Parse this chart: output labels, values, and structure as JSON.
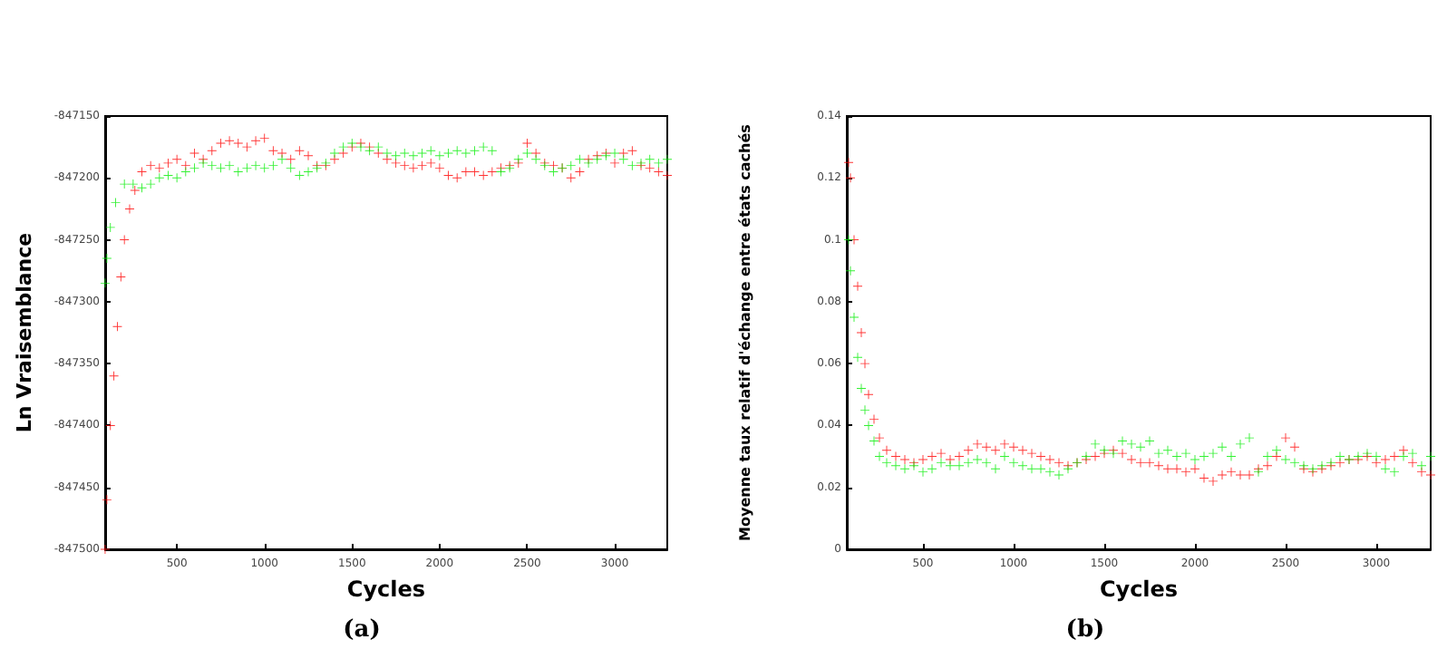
{
  "chart_data": [
    {
      "type": "scatter",
      "xlabel": "Cycles",
      "ylabel": "Ln Vraisemblance",
      "annotations": [
        "(a)"
      ],
      "marker": "cross",
      "xlim": [
        90,
        3300
      ],
      "xticks": [
        500,
        1000,
        1500,
        2000,
        2500,
        3000
      ],
      "ylim": [
        -847500,
        -847150
      ],
      "yticks": [
        -847500,
        -847450,
        -847400,
        -847350,
        -847300,
        -847250,
        -847200,
        -847150
      ],
      "series": [
        {
          "color": "#ff0000",
          "x": [
            90,
            100,
            120,
            140,
            160,
            180,
            200,
            230,
            260,
            300,
            350,
            400,
            450,
            500,
            550,
            600,
            650,
            700,
            750,
            800,
            850,
            900,
            950,
            1000,
            1050,
            1100,
            1150,
            1200,
            1250,
            1300,
            1350,
            1400,
            1450,
            1500,
            1550,
            1600,
            1650,
            1700,
            1750,
            1800,
            1850,
            1900,
            1950,
            2000,
            2050,
            2100,
            2150,
            2200,
            2250,
            2300,
            2350,
            2400,
            2450,
            2500,
            2550,
            2600,
            2650,
            2700,
            2750,
            2800,
            2850,
            2900,
            2950,
            3000,
            3050,
            3100,
            3150,
            3200,
            3250,
            3300
          ],
          "values": [
            -847500,
            -847460,
            -847400,
            -847360,
            -847320,
            -847280,
            -847250,
            -847225,
            -847210,
            -847195,
            -847190,
            -847192,
            -847188,
            -847185,
            -847190,
            -847180,
            -847185,
            -847178,
            -847172,
            -847170,
            -847172,
            -847175,
            -847170,
            -847168,
            -847178,
            -847180,
            -847185,
            -847178,
            -847182,
            -847190,
            -847190,
            -847185,
            -847180,
            -847175,
            -847172,
            -847175,
            -847180,
            -847185,
            -847188,
            -847190,
            -847192,
            -847190,
            -847188,
            -847192,
            -847198,
            -847200,
            -847195,
            -847195,
            -847198,
            -847195,
            -847192,
            -847190,
            -847188,
            -847172,
            -847180,
            -847188,
            -847190,
            -847192,
            -847200,
            -847195,
            -847185,
            -847182,
            -847180,
            -847188,
            -847180,
            -847178,
            -847190,
            -847192,
            -847195,
            -847198
          ]
        },
        {
          "color": "#00ee00",
          "x": [
            90,
            100,
            120,
            150,
            200,
            250,
            300,
            350,
            400,
            450,
            500,
            550,
            600,
            650,
            700,
            750,
            800,
            850,
            900,
            950,
            1000,
            1050,
            1100,
            1150,
            1200,
            1250,
            1300,
            1350,
            1400,
            1450,
            1500,
            1550,
            1600,
            1650,
            1700,
            1750,
            1800,
            1850,
            1900,
            1950,
            2000,
            2050,
            2100,
            2150,
            2200,
            2250,
            2300,
            2350,
            2400,
            2450,
            2500,
            2550,
            2600,
            2650,
            2700,
            2750,
            2800,
            2850,
            2900,
            2950,
            3000,
            3050,
            3100,
            3150,
            3200,
            3250,
            3300
          ],
          "values": [
            -847285,
            -847265,
            -847240,
            -847220,
            -847205,
            -847205,
            -847208,
            -847205,
            -847200,
            -847198,
            -847200,
            -847195,
            -847192,
            -847188,
            -847190,
            -847192,
            -847190,
            -847195,
            -847192,
            -847190,
            -847192,
            -847190,
            -847185,
            -847192,
            -847198,
            -847195,
            -847192,
            -847188,
            -847180,
            -847175,
            -847172,
            -847175,
            -847178,
            -847175,
            -847180,
            -847182,
            -847180,
            -847182,
            -847180,
            -847178,
            -847182,
            -847180,
            -847178,
            -847180,
            -847178,
            -847175,
            -847178,
            -847195,
            -847192,
            -847185,
            -847180,
            -847185,
            -847190,
            -847195,
            -847192,
            -847190,
            -847185,
            -847188,
            -847185,
            -847182,
            -847180,
            -847185,
            -847190,
            -847188,
            -847185,
            -847188,
            -847185
          ]
        }
      ]
    },
    {
      "type": "scatter",
      "xlabel": "Cycles",
      "ylabel": "Moyenne taux relatif d'échange entre états cachés",
      "annotations": [
        "(b)"
      ],
      "marker": "cross",
      "xlim": [
        80,
        3300
      ],
      "xticks": [
        500,
        1000,
        1500,
        2000,
        2500,
        3000
      ],
      "ylim": [
        0,
        0.14
      ],
      "yticks": [
        0,
        0.02,
        0.04,
        0.06,
        0.08,
        0.1,
        0.12,
        0.14
      ],
      "series": [
        {
          "color": "#ff0000",
          "x": [
            90,
            100,
            120,
            140,
            160,
            180,
            200,
            230,
            260,
            300,
            350,
            400,
            450,
            500,
            550,
            600,
            650,
            700,
            750,
            800,
            850,
            900,
            950,
            1000,
            1050,
            1100,
            1150,
            1200,
            1250,
            1300,
            1350,
            1400,
            1450,
            1500,
            1550,
            1600,
            1650,
            1700,
            1750,
            1800,
            1850,
            1900,
            1950,
            2000,
            2050,
            2100,
            2150,
            2200,
            2250,
            2300,
            2350,
            2400,
            2450,
            2500,
            2550,
            2600,
            2650,
            2700,
            2750,
            2800,
            2850,
            2900,
            2950,
            3000,
            3050,
            3100,
            3150,
            3200,
            3250,
            3300
          ],
          "values": [
            0.125,
            0.12,
            0.1,
            0.085,
            0.07,
            0.06,
            0.05,
            0.042,
            0.036,
            0.032,
            0.03,
            0.029,
            0.028,
            0.029,
            0.03,
            0.031,
            0.029,
            0.03,
            0.032,
            0.034,
            0.033,
            0.032,
            0.034,
            0.033,
            0.032,
            0.031,
            0.03,
            0.029,
            0.028,
            0.027,
            0.028,
            0.029,
            0.03,
            0.031,
            0.032,
            0.031,
            0.029,
            0.028,
            0.028,
            0.027,
            0.026,
            0.026,
            0.025,
            0.026,
            0.023,
            0.022,
            0.024,
            0.025,
            0.024,
            0.024,
            0.026,
            0.027,
            0.03,
            0.036,
            0.033,
            0.026,
            0.025,
            0.026,
            0.027,
            0.028,
            0.029,
            0.029,
            0.03,
            0.028,
            0.029,
            0.03,
            0.032,
            0.028,
            0.025,
            0.024
          ]
        },
        {
          "color": "#00ee00",
          "x": [
            90,
            100,
            120,
            140,
            160,
            180,
            200,
            230,
            260,
            300,
            350,
            400,
            450,
            500,
            550,
            600,
            650,
            700,
            750,
            800,
            850,
            900,
            950,
            1000,
            1050,
            1100,
            1150,
            1200,
            1250,
            1300,
            1350,
            1400,
            1450,
            1500,
            1550,
            1600,
            1650,
            1700,
            1750,
            1800,
            1850,
            1900,
            1950,
            2000,
            2050,
            2100,
            2150,
            2200,
            2250,
            2300,
            2350,
            2400,
            2450,
            2500,
            2550,
            2600,
            2650,
            2700,
            2750,
            2800,
            2850,
            2900,
            2950,
            3000,
            3050,
            3100,
            3150,
            3200,
            3250,
            3300
          ],
          "values": [
            0.1,
            0.09,
            0.075,
            0.062,
            0.052,
            0.045,
            0.04,
            0.035,
            0.03,
            0.028,
            0.027,
            0.026,
            0.027,
            0.025,
            0.026,
            0.028,
            0.027,
            0.027,
            0.028,
            0.029,
            0.028,
            0.026,
            0.03,
            0.028,
            0.027,
            0.026,
            0.026,
            0.025,
            0.024,
            0.026,
            0.028,
            0.03,
            0.034,
            0.032,
            0.031,
            0.035,
            0.034,
            0.033,
            0.035,
            0.031,
            0.032,
            0.03,
            0.031,
            0.029,
            0.03,
            0.031,
            0.033,
            0.03,
            0.034,
            0.036,
            0.025,
            0.03,
            0.032,
            0.029,
            0.028,
            0.027,
            0.026,
            0.027,
            0.028,
            0.03,
            0.029,
            0.03,
            0.031,
            0.03,
            0.026,
            0.025,
            0.03,
            0.031,
            0.027,
            0.03
          ]
        }
      ]
    }
  ]
}
